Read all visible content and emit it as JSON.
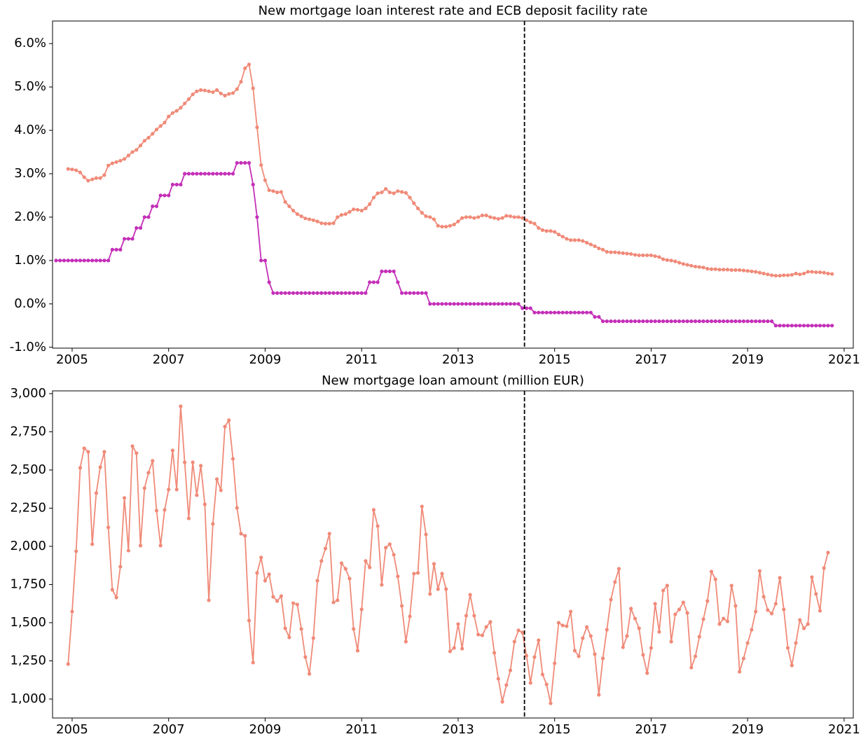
{
  "chart_data": [
    {
      "type": "line",
      "title": "New mortgage loan interest rate and ECB deposit facility rate",
      "x": [
        2004.667,
        2004.75,
        2004.833,
        2004.917,
        2005,
        2005.083,
        2005.167,
        2005.25,
        2005.333,
        2005.417,
        2005.5,
        2005.583,
        2005.667,
        2005.75,
        2005.833,
        2005.917,
        2006,
        2006.083,
        2006.167,
        2006.25,
        2006.333,
        2006.417,
        2006.5,
        2006.583,
        2006.667,
        2006.75,
        2006.833,
        2006.917,
        2007,
        2007.083,
        2007.167,
        2007.25,
        2007.333,
        2007.417,
        2007.5,
        2007.583,
        2007.667,
        2007.75,
        2007.833,
        2007.917,
        2008,
        2008.083,
        2008.167,
        2008.25,
        2008.333,
        2008.417,
        2008.5,
        2008.583,
        2008.667,
        2008.75,
        2008.833,
        2008.917,
        2009,
        2009.083,
        2009.167,
        2009.25,
        2009.333,
        2009.417,
        2009.5,
        2009.583,
        2009.667,
        2009.75,
        2009.833,
        2009.917,
        2010,
        2010.083,
        2010.167,
        2010.25,
        2010.333,
        2010.417,
        2010.5,
        2010.583,
        2010.667,
        2010.75,
        2010.833,
        2010.917,
        2011,
        2011.083,
        2011.167,
        2011.25,
        2011.333,
        2011.417,
        2011.5,
        2011.583,
        2011.667,
        2011.75,
        2011.833,
        2011.917,
        2012,
        2012.083,
        2012.167,
        2012.25,
        2012.333,
        2012.417,
        2012.5,
        2012.583,
        2012.667,
        2012.75,
        2012.833,
        2012.917,
        2013,
        2013.083,
        2013.167,
        2013.25,
        2013.333,
        2013.417,
        2013.5,
        2013.583,
        2013.667,
        2013.75,
        2013.833,
        2013.917,
        2014,
        2014.083,
        2014.167,
        2014.25,
        2014.333,
        2014.417,
        2014.5,
        2014.583,
        2014.667,
        2014.75,
        2014.833,
        2014.917,
        2015,
        2015.083,
        2015.167,
        2015.25,
        2015.333,
        2015.417,
        2015.5,
        2015.583,
        2015.667,
        2015.75,
        2015.833,
        2015.917,
        2016,
        2016.083,
        2016.167,
        2016.25,
        2016.333,
        2016.417,
        2016.5,
        2016.583,
        2016.667,
        2016.75,
        2016.833,
        2016.917,
        2017,
        2017.083,
        2017.167,
        2017.25,
        2017.333,
        2017.417,
        2017.5,
        2017.583,
        2017.667,
        2017.75,
        2017.833,
        2017.917,
        2018,
        2018.083,
        2018.167,
        2018.25,
        2018.333,
        2018.417,
        2018.5,
        2018.583,
        2018.667,
        2018.75,
        2018.833,
        2018.917,
        2019,
        2019.083,
        2019.167,
        2019.25,
        2019.333,
        2019.417,
        2019.5,
        2019.583,
        2019.667,
        2019.75,
        2019.833,
        2019.917,
        2020,
        2020.083,
        2020.167,
        2020.25,
        2020.333,
        2020.417,
        2020.5,
        2020.583,
        2020.667,
        2020.75
      ],
      "xlim": [
        2004.594,
        2021.19
      ],
      "xticks": [
        2005,
        2007,
        2009,
        2011,
        2013,
        2015,
        2017,
        2019,
        2021
      ],
      "ylim": [
        -1.02,
        6.52
      ],
      "yticks": [
        {
          "value": -1,
          "label": "-1.0%"
        },
        {
          "value": 0,
          "label": "0.0%"
        },
        {
          "value": 1,
          "label": "1.0%"
        },
        {
          "value": 2,
          "label": "2.0%"
        },
        {
          "value": 3,
          "label": "3.0%"
        },
        {
          "value": 4,
          "label": "4.0%"
        },
        {
          "value": 5,
          "label": "5.0%"
        },
        {
          "value": 6,
          "label": "6.0%"
        }
      ],
      "vline": 2014.375,
      "series": [
        {
          "color": "#f08a78",
          "values": [
            null,
            null,
            null,
            3.11,
            3.1,
            3.08,
            3.03,
            2.92,
            2.84,
            2.87,
            2.9,
            2.9,
            2.97,
            3.19,
            3.24,
            3.27,
            3.3,
            3.34,
            3.42,
            3.5,
            3.55,
            3.65,
            3.76,
            3.83,
            3.92,
            4.02,
            4.1,
            4.18,
            4.32,
            4.4,
            4.45,
            4.52,
            4.62,
            4.72,
            4.83,
            4.9,
            4.93,
            4.92,
            4.9,
            4.88,
            4.93,
            4.85,
            4.8,
            4.84,
            4.86,
            4.95,
            5.12,
            5.43,
            5.52,
            4.97,
            4.07,
            3.2,
            2.85,
            2.62,
            2.6,
            2.57,
            2.58,
            2.35,
            2.25,
            2.15,
            2.07,
            2.02,
            1.97,
            1.95,
            1.93,
            1.9,
            1.86,
            1.85,
            1.85,
            1.86,
            2.0,
            2.05,
            2.07,
            2.12,
            2.18,
            2.17,
            2.15,
            2.2,
            2.3,
            2.45,
            2.55,
            2.57,
            2.65,
            2.57,
            2.55,
            2.6,
            2.58,
            2.56,
            2.45,
            2.32,
            2.2,
            2.1,
            2.02,
            2.0,
            1.95,
            1.8,
            1.78,
            1.78,
            1.8,
            1.83,
            1.9,
            1.98,
            2.0,
            2.0,
            1.98,
            2.0,
            2.04,
            2.04,
            2.0,
            1.98,
            1.96,
            1.98,
            2.03,
            2.02,
            2.0,
            2.0,
            1.98,
            1.93,
            1.88,
            1.85,
            1.75,
            1.7,
            1.68,
            1.68,
            1.66,
            1.6,
            1.55,
            1.5,
            1.47,
            1.47,
            1.47,
            1.45,
            1.41,
            1.37,
            1.33,
            1.28,
            1.25,
            1.2,
            1.19,
            1.19,
            1.18,
            1.17,
            1.16,
            1.15,
            1.13,
            1.12,
            1.12,
            1.12,
            1.12,
            1.1,
            1.08,
            1.03,
            1.01,
            1.0,
            0.98,
            0.95,
            0.92,
            0.9,
            0.88,
            0.86,
            0.85,
            0.84,
            0.81,
            0.8,
            0.8,
            0.79,
            0.79,
            0.79,
            0.78,
            0.78,
            0.78,
            0.77,
            0.76,
            0.75,
            0.74,
            0.72,
            0.7,
            0.68,
            0.66,
            0.65,
            0.65,
            0.66,
            0.66,
            0.67,
            0.7,
            0.68,
            0.7,
            0.74,
            0.74,
            0.73,
            0.73,
            0.72,
            0.7,
            0.69
          ]
        },
        {
          "color": "#c42fb8",
          "values": [
            1,
            1,
            1,
            1,
            1,
            1,
            1,
            1,
            1,
            1,
            1,
            1,
            1,
            1,
            1.25,
            1.25,
            1.25,
            1.5,
            1.5,
            1.5,
            1.75,
            1.75,
            2,
            2,
            2.25,
            2.25,
            2.5,
            2.5,
            2.5,
            2.75,
            2.75,
            2.75,
            3,
            3,
            3,
            3,
            3,
            3,
            3,
            3,
            3,
            3,
            3,
            3,
            3,
            3.25,
            3.25,
            3.25,
            3.25,
            2.75,
            2,
            1,
            1,
            0.5,
            0.25,
            0.25,
            0.25,
            0.25,
            0.25,
            0.25,
            0.25,
            0.25,
            0.25,
            0.25,
            0.25,
            0.25,
            0.25,
            0.25,
            0.25,
            0.25,
            0.25,
            0.25,
            0.25,
            0.25,
            0.25,
            0.25,
            0.25,
            0.25,
            0.5,
            0.5,
            0.5,
            0.75,
            0.75,
            0.75,
            0.75,
            0.5,
            0.25,
            0.25,
            0.25,
            0.25,
            0.25,
            0.25,
            0.25,
            0,
            0,
            0,
            0,
            0,
            0,
            0,
            0,
            0,
            0,
            0,
            0,
            0,
            0,
            0,
            0,
            0,
            0,
            0,
            0,
            0,
            0,
            0,
            -0.1,
            -0.1,
            -0.1,
            -0.2,
            -0.2,
            -0.2,
            -0.2,
            -0.2,
            -0.2,
            -0.2,
            -0.2,
            -0.2,
            -0.2,
            -0.2,
            -0.2,
            -0.2,
            -0.2,
            -0.2,
            -0.3,
            -0.3,
            -0.4,
            -0.4,
            -0.4,
            -0.4,
            -0.4,
            -0.4,
            -0.4,
            -0.4,
            -0.4,
            -0.4,
            -0.4,
            -0.4,
            -0.4,
            -0.4,
            -0.4,
            -0.4,
            -0.4,
            -0.4,
            -0.4,
            -0.4,
            -0.4,
            -0.4,
            -0.4,
            -0.4,
            -0.4,
            -0.4,
            -0.4,
            -0.4,
            -0.4,
            -0.4,
            -0.4,
            -0.4,
            -0.4,
            -0.4,
            -0.4,
            -0.4,
            -0.4,
            -0.4,
            -0.4,
            -0.4,
            -0.4,
            -0.4,
            -0.4,
            -0.5,
            -0.5,
            -0.5,
            -0.5,
            -0.5,
            -0.5,
            -0.5,
            -0.5,
            -0.5,
            -0.5,
            -0.5,
            -0.5,
            -0.5,
            -0.5,
            -0.5
          ]
        }
      ]
    },
    {
      "type": "line",
      "title": "New mortgage loan amount (million EUR)",
      "x": [
        2004.667,
        2004.75,
        2004.833,
        2004.917,
        2005,
        2005.083,
        2005.167,
        2005.25,
        2005.333,
        2005.417,
        2005.5,
        2005.583,
        2005.667,
        2005.75,
        2005.833,
        2005.917,
        2006,
        2006.083,
        2006.167,
        2006.25,
        2006.333,
        2006.417,
        2006.5,
        2006.583,
        2006.667,
        2006.75,
        2006.833,
        2006.917,
        2007,
        2007.083,
        2007.167,
        2007.25,
        2007.333,
        2007.417,
        2007.5,
        2007.583,
        2007.667,
        2007.75,
        2007.833,
        2007.917,
        2008,
        2008.083,
        2008.167,
        2008.25,
        2008.333,
        2008.417,
        2008.5,
        2008.583,
        2008.667,
        2008.75,
        2008.833,
        2008.917,
        2009,
        2009.083,
        2009.167,
        2009.25,
        2009.333,
        2009.417,
        2009.5,
        2009.583,
        2009.667,
        2009.75,
        2009.833,
        2009.917,
        2010,
        2010.083,
        2010.167,
        2010.25,
        2010.333,
        2010.417,
        2010.5,
        2010.583,
        2010.667,
        2010.75,
        2010.833,
        2010.917,
        2011,
        2011.083,
        2011.167,
        2011.25,
        2011.333,
        2011.417,
        2011.5,
        2011.583,
        2011.667,
        2011.75,
        2011.833,
        2011.917,
        2012,
        2012.083,
        2012.167,
        2012.25,
        2012.333,
        2012.417,
        2012.5,
        2012.583,
        2012.667,
        2012.75,
        2012.833,
        2012.917,
        2013,
        2013.083,
        2013.167,
        2013.25,
        2013.333,
        2013.417,
        2013.5,
        2013.583,
        2013.667,
        2013.75,
        2013.833,
        2013.917,
        2014,
        2014.083,
        2014.167,
        2014.25,
        2014.333,
        2014.417,
        2014.5,
        2014.583,
        2014.667,
        2014.75,
        2014.833,
        2014.917,
        2015,
        2015.083,
        2015.167,
        2015.25,
        2015.333,
        2015.417,
        2015.5,
        2015.583,
        2015.667,
        2015.75,
        2015.833,
        2015.917,
        2016,
        2016.083,
        2016.167,
        2016.25,
        2016.333,
        2016.417,
        2016.5,
        2016.583,
        2016.667,
        2016.75,
        2016.833,
        2016.917,
        2017,
        2017.083,
        2017.167,
        2017.25,
        2017.333,
        2017.417,
        2017.5,
        2017.583,
        2017.667,
        2017.75,
        2017.833,
        2017.917,
        2018,
        2018.083,
        2018.167,
        2018.25,
        2018.333,
        2018.417,
        2018.5,
        2018.583,
        2018.667,
        2018.75,
        2018.833,
        2018.917,
        2019,
        2019.083,
        2019.167,
        2019.25,
        2019.333,
        2019.417,
        2019.5,
        2019.583,
        2019.667,
        2019.75,
        2019.833,
        2019.917,
        2020,
        2020.083,
        2020.167,
        2020.25,
        2020.333,
        2020.417,
        2020.5,
        2020.583,
        2020.667,
        2020.75
      ],
      "xlim": [
        2004.594,
        2021.19
      ],
      "xticks": [
        2005,
        2007,
        2009,
        2011,
        2013,
        2015,
        2017,
        2019,
        2021
      ],
      "ylim": [
        876,
        3018
      ],
      "yticks": [
        {
          "value": 1000,
          "label": "1,000"
        },
        {
          "value": 1250,
          "label": "1,250"
        },
        {
          "value": 1500,
          "label": "1,500"
        },
        {
          "value": 1750,
          "label": "1,750"
        },
        {
          "value": 2000,
          "label": "2,000"
        },
        {
          "value": 2250,
          "label": "2,250"
        },
        {
          "value": 2500,
          "label": "2,500"
        },
        {
          "value": 2750,
          "label": "2,750"
        },
        {
          "value": 3000,
          "label": "3,000"
        }
      ],
      "vline": 2014.375,
      "series": [
        {
          "color": "#f08a78",
          "values": [
            null,
            null,
            null,
            1229,
            1573,
            1968,
            2514,
            2642,
            2619,
            2014,
            2349,
            2518,
            2619,
            2124,
            1716,
            1665,
            1867,
            2317,
            1972,
            2656,
            2610,
            2005,
            2381,
            2482,
            2560,
            2234,
            2005,
            2239,
            2372,
            2628,
            2372,
            2917,
            2550,
            2183,
            2550,
            2335,
            2528,
            2275,
            1647,
            2147,
            2440,
            2367,
            2784,
            2826,
            2573,
            2252,
            2083,
            2069,
            1514,
            1239,
            1826,
            1927,
            1775,
            1817,
            1670,
            1642,
            1674,
            1463,
            1404,
            1628,
            1619,
            1459,
            1275,
            1165,
            1399,
            1775,
            1904,
            1986,
            2083,
            1633,
            1647,
            1890,
            1853,
            1789,
            1459,
            1317,
            1587,
            1904,
            1862,
            2239,
            2133,
            1748,
            1991,
            2014,
            1945,
            1803,
            1610,
            1376,
            1541,
            1821,
            1826,
            2261,
            2078,
            1688,
            1885,
            1720,
            1821,
            1720,
            1312,
            1335,
            1491,
            1330,
            1546,
            1683,
            1546,
            1422,
            1417,
            1472,
            1505,
            1303,
            1133,
            982,
            1092,
            1188,
            1376,
            1450,
            1436,
            1284,
            1106,
            1275,
            1385,
            1161,
            1096,
            972,
            1234,
            1500,
            1482,
            1477,
            1573,
            1317,
            1280,
            1399,
            1472,
            1413,
            1294,
            1028,
            1266,
            1454,
            1651,
            1766,
            1853,
            1339,
            1413,
            1592,
            1527,
            1463,
            1289,
            1170,
            1335,
            1624,
            1440,
            1711,
            1743,
            1376,
            1555,
            1587,
            1633,
            1564,
            1206,
            1280,
            1408,
            1523,
            1642,
            1835,
            1784,
            1491,
            1527,
            1509,
            1743,
            1610,
            1179,
            1266,
            1367,
            1454,
            1573,
            1839,
            1670,
            1583,
            1560,
            1624,
            1794,
            1587,
            1335,
            1220,
            1367,
            1518,
            1463,
            1491,
            1798,
            1688,
            1578,
            1858,
            1959,
            null
          ]
        }
      ]
    }
  ]
}
